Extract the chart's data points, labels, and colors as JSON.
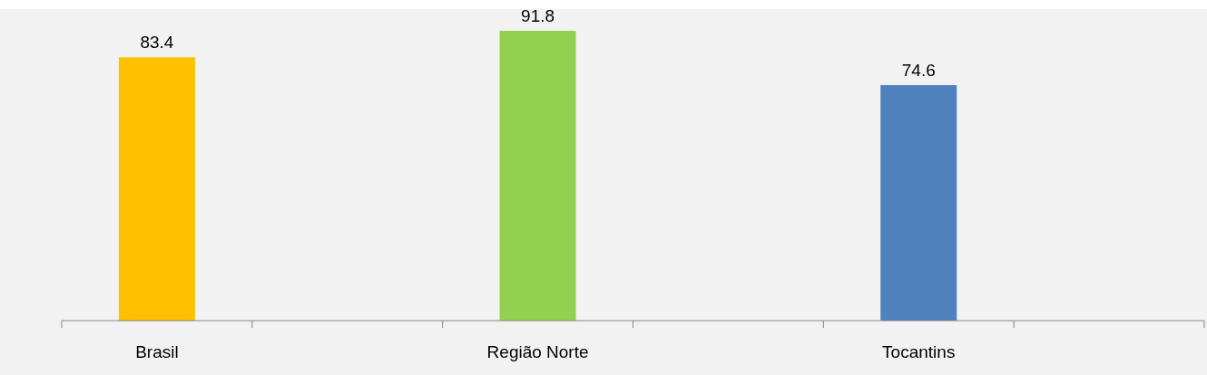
{
  "chart_data": {
    "type": "bar",
    "categories": [
      "Brasil",
      null,
      "Região Norte",
      null,
      "Tocantins",
      null
    ],
    "values": [
      83.4,
      null,
      91.8,
      null,
      74.6,
      null
    ],
    "colors": [
      "#ffc000",
      null,
      "#92d050",
      null,
      "#4f81bd",
      null
    ],
    "data_labels": true
  }
}
